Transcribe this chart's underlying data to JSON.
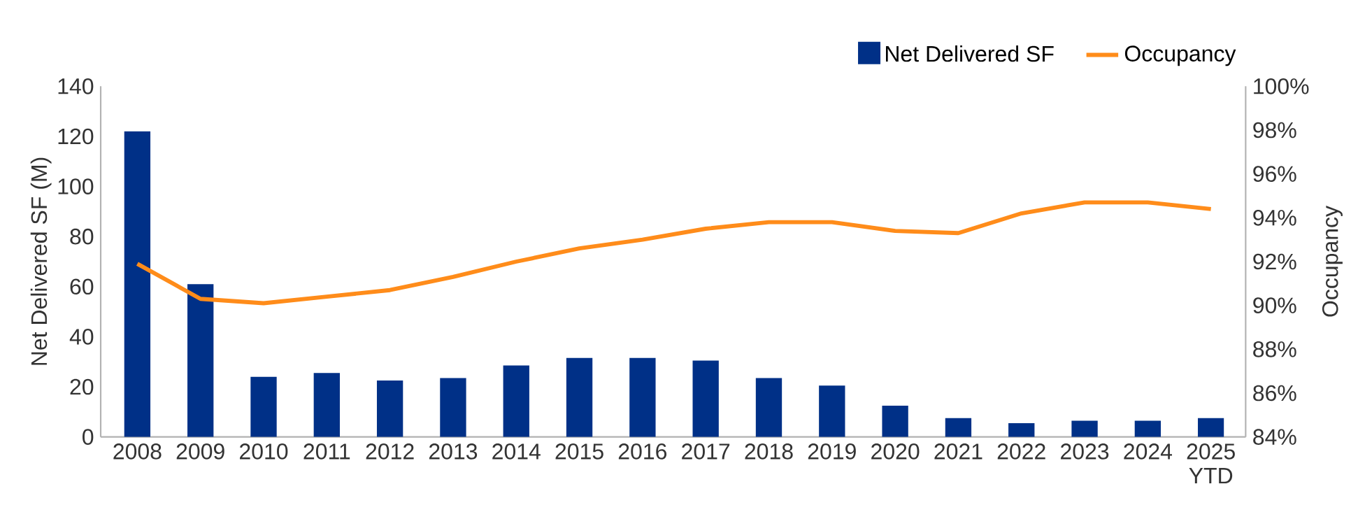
{
  "chart_data": {
    "type": "bar",
    "categories": [
      "2008",
      "2009",
      "2010",
      "2011",
      "2012",
      "2013",
      "2014",
      "2015",
      "2016",
      "2017",
      "2018",
      "2019",
      "2020",
      "2021",
      "2022",
      "2023",
      "2024",
      "2025 YTD"
    ],
    "series": [
      {
        "name": "Net Delivered SF",
        "color": "#003087",
        "values": [
          122,
          61,
          24,
          25.5,
          22.5,
          23.5,
          28.5,
          31.5,
          31.5,
          30.5,
          23.5,
          20.5,
          12.5,
          7.5,
          5.5,
          6.5,
          6.5,
          7.5
        ]
      },
      {
        "name": "Occupancy",
        "type": "line",
        "axis": "y2",
        "color": "#ff8c1a",
        "values": [
          91.9,
          90.3,
          90.1,
          90.4,
          90.7,
          91.3,
          92.0,
          92.6,
          93.0,
          93.5,
          93.8,
          93.8,
          93.4,
          93.3,
          94.2,
          94.7,
          94.7,
          94.4
        ]
      }
    ],
    "ylabel": "Net Delivered SF (M)",
    "y2label": "Occupancy",
    "ylim": [
      0,
      140
    ],
    "yticks": [
      0,
      20,
      40,
      60,
      80,
      100,
      120,
      140
    ],
    "y2lim": [
      84,
      100
    ],
    "y2ticks": [
      {
        "value": 84,
        "label": "84%"
      },
      {
        "value": 86,
        "label": "86%"
      },
      {
        "value": 88,
        "label": "88%"
      },
      {
        "value": 90,
        "label": "90%"
      },
      {
        "value": 92,
        "label": "92%"
      },
      {
        "value": 94,
        "label": "94%"
      },
      {
        "value": 96,
        "label": "96%"
      },
      {
        "value": 98,
        "label": "98%"
      },
      {
        "value": 100,
        "label": "100%"
      }
    ],
    "grid": false,
    "legend": "top right",
    "marker": "none",
    "line_style": "solid"
  }
}
